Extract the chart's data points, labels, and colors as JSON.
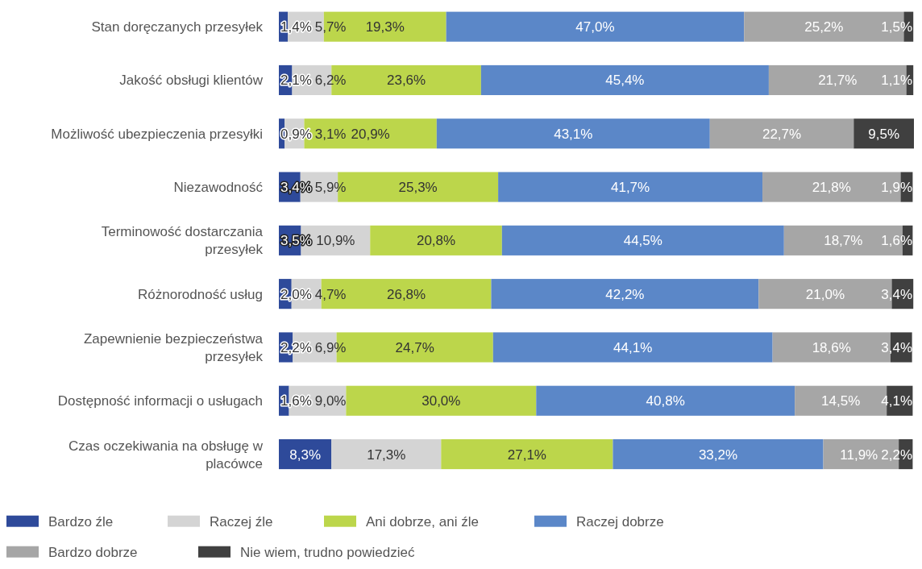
{
  "chart_data": {
    "type": "bar",
    "orientation": "horizontal",
    "stacked": true,
    "legend": "bottom",
    "categories": [
      "Stan doręczanych przesyłek",
      "Jakość obsługi klientów",
      "Możliwość ubezpieczenia przesyłki",
      "Niezawodność",
      "Terminowość dostarczania przesyłek",
      "Różnorodność usług",
      "Zapewnienie bezpieczeństwa przesyłek",
      "Dostępność informacji o usługach",
      "Czas oczekiwania na obsługę w placówce"
    ],
    "series": [
      {
        "name": "Bardzo źle",
        "color": "#2e4a9a",
        "values": [
          1.4,
          2.1,
          0.9,
          3.4,
          3.5,
          2.0,
          2.2,
          1.6,
          8.3
        ],
        "value_labels": [
          "1,4%",
          "2,1%",
          "0,9%",
          "3,4%",
          "3,5%",
          "2,0%",
          "2,2%",
          "1,6%",
          "8,3%"
        ]
      },
      {
        "name": "Raczej źle",
        "color": "#d4d4d4",
        "values": [
          5.7,
          6.2,
          3.1,
          5.9,
          10.9,
          4.7,
          6.9,
          9.0,
          17.3
        ],
        "value_labels": [
          "5,7%",
          "6,2%",
          "3,1%",
          "5,9%",
          "10,9%",
          "4,7%",
          "6,9%",
          "9,0%",
          "17,3%"
        ]
      },
      {
        "name": "Ani dobrze, ani źle",
        "color": "#bcd64b",
        "values": [
          19.3,
          23.6,
          20.9,
          25.3,
          20.8,
          26.8,
          24.7,
          30.0,
          27.1
        ],
        "value_labels": [
          "19,3%",
          "23,6%",
          "20,9%",
          "25,3%",
          "20,8%",
          "26,8%",
          "24,7%",
          "30,0%",
          "27,1%"
        ]
      },
      {
        "name": "Raczej dobrze",
        "color": "#5b87c8",
        "values": [
          47.0,
          45.4,
          43.1,
          41.7,
          44.5,
          42.2,
          44.1,
          40.8,
          33.2
        ],
        "value_labels": [
          "47,0%",
          "45,4%",
          "43,1%",
          "41,7%",
          "44,5%",
          "42,2%",
          "44,1%",
          "40,8%",
          "33,2%"
        ]
      },
      {
        "name": "Bardzo dobrze",
        "color": "#a6a6a6",
        "values": [
          25.2,
          21.7,
          22.7,
          21.8,
          18.7,
          21.0,
          18.6,
          14.5,
          11.9
        ],
        "value_labels": [
          "25,2%",
          "21,7%",
          "22,7%",
          "21,8%",
          "18,7%",
          "21,0%",
          "18,6%",
          "14,5%",
          "11,9%"
        ]
      },
      {
        "name": "Nie wiem, trudno powiedzieć",
        "color": "#404040",
        "values": [
          1.5,
          1.1,
          9.5,
          1.9,
          1.6,
          3.4,
          3.4,
          4.1,
          2.2
        ],
        "value_labels": [
          "1,5%",
          "1,1%",
          "9,5%",
          "1,9%",
          "1,6%",
          "3,4%",
          "3,4%",
          "4,1%",
          "2,2%"
        ]
      }
    ]
  }
}
